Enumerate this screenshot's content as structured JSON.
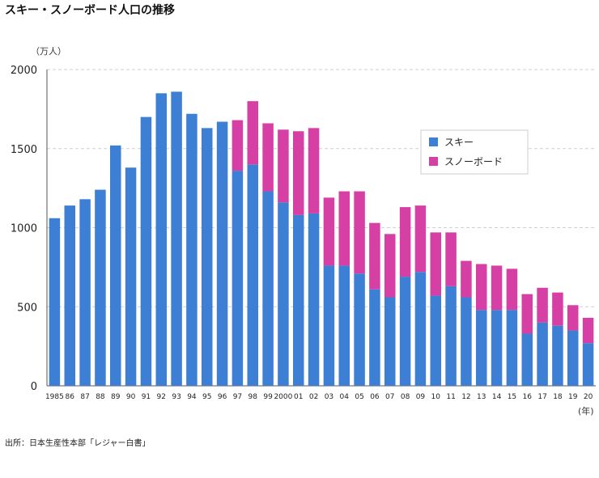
{
  "title": "スキー・スノーボード人口の推移",
  "source": "出所：日本生産性本部「レジャー白書」",
  "colors": {
    "ski": "#3d7fd4",
    "snowboard": "#d63fa3"
  },
  "chart_data": {
    "type": "bar",
    "stacked": true,
    "title": "スキー・スノーボード人口の推移",
    "y_unit_label": "（万人）",
    "x_unit_label": "(年)",
    "ylim": [
      0,
      2000
    ],
    "yticks": [
      0,
      500,
      1000,
      1500,
      2000
    ],
    "grid": true,
    "legend_position": "right",
    "categories": [
      "1985",
      "86",
      "87",
      "88",
      "89",
      "90",
      "91",
      "92",
      "93",
      "94",
      "95",
      "96",
      "97",
      "98",
      "99",
      "2000",
      "01",
      "02",
      "03",
      "04",
      "05",
      "06",
      "07",
      "08",
      "09",
      "10",
      "11",
      "12",
      "13",
      "14",
      "15",
      "16",
      "17",
      "18",
      "19",
      "20"
    ],
    "series": [
      {
        "name": "スキー",
        "values": [
          1060,
          1140,
          1180,
          1240,
          1520,
          1380,
          1700,
          1850,
          1860,
          1720,
          1630,
          1670,
          1360,
          1400,
          1230,
          1160,
          1080,
          1090,
          760,
          760,
          710,
          610,
          560,
          690,
          720,
          570,
          630,
          560,
          480,
          480,
          480,
          330,
          400,
          380,
          350,
          270
        ]
      },
      {
        "name": "スノーボード",
        "values": [
          0,
          0,
          0,
          0,
          0,
          0,
          0,
          0,
          0,
          0,
          0,
          0,
          320,
          400,
          430,
          460,
          530,
          540,
          430,
          470,
          520,
          420,
          400,
          440,
          420,
          400,
          340,
          230,
          290,
          280,
          260,
          250,
          220,
          210,
          160,
          160
        ]
      }
    ]
  }
}
